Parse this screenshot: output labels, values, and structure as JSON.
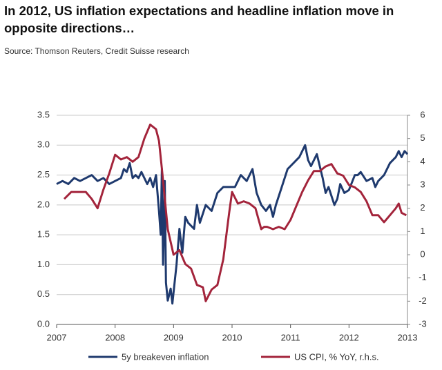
{
  "chart_data": {
    "type": "line",
    "title": "In 2012, US inflation expectations and headline inflation move in opposite directions…",
    "subtitle": "Source: Thomson Reuters, Credit Suisse research",
    "xlim": [
      2007,
      2013
    ],
    "xticks": [
      2007,
      2008,
      2009,
      2010,
      2011,
      2012,
      2013
    ],
    "ylim": [
      0,
      3.5
    ],
    "yticks": [
      {
        "value": 0,
        "label": "0.0"
      },
      0.5,
      {
        "value": 1,
        "label": "1.0"
      },
      1.5,
      {
        "value": 2,
        "label": "2.0"
      },
      2.5,
      {
        "value": 3,
        "label": "3.0"
      },
      3.5
    ],
    "y2lim": [
      -3,
      6
    ],
    "y2ticks": [
      -3,
      -2,
      -1,
      0,
      1,
      2,
      3,
      4,
      5,
      6
    ],
    "grid": true,
    "series": [
      {
        "name": "5y breakeven inflation",
        "color": "#1f3a6e",
        "x": [
          2007.0,
          2007.1,
          2007.2,
          2007.3,
          2007.4,
          2007.5,
          2007.6,
          2007.7,
          2007.8,
          2007.9,
          2008.0,
          2008.1,
          2008.15,
          2008.2,
          2008.25,
          2008.3,
          2008.35,
          2008.4,
          2008.45,
          2008.5,
          2008.55,
          2008.6,
          2008.65,
          2008.7,
          2008.75,
          2008.78,
          2008.8,
          2008.82,
          2008.85,
          2008.87,
          2008.9,
          2008.95,
          2008.98,
          2009.05,
          2009.1,
          2009.15,
          2009.2,
          2009.25,
          2009.35,
          2009.4,
          2009.45,
          2009.55,
          2009.65,
          2009.75,
          2009.85,
          2009.95,
          2010.05,
          2010.15,
          2010.25,
          2010.35,
          2010.42,
          2010.5,
          2010.58,
          2010.65,
          2010.7,
          2010.75,
          2010.85,
          2010.95,
          2011.05,
          2011.15,
          2011.25,
          2011.3,
          2011.35,
          2011.45,
          2011.55,
          2011.6,
          2011.65,
          2011.75,
          2011.8,
          2011.85,
          2011.92,
          2012.0,
          2012.1,
          2012.15,
          2012.2,
          2012.3,
          2012.4,
          2012.45,
          2012.5,
          2012.6,
          2012.7,
          2012.8,
          2012.85,
          2012.9,
          2012.95,
          2013.0
        ],
        "values": [
          2.35,
          2.4,
          2.35,
          2.45,
          2.4,
          2.45,
          2.5,
          2.4,
          2.45,
          2.35,
          2.4,
          2.45,
          2.6,
          2.55,
          2.7,
          2.45,
          2.5,
          2.45,
          2.55,
          2.45,
          2.35,
          2.45,
          2.3,
          2.5,
          1.9,
          1.5,
          2.6,
          1.0,
          2.4,
          0.7,
          0.4,
          0.6,
          0.35,
          1.0,
          1.6,
          1.2,
          1.8,
          1.7,
          1.6,
          2.0,
          1.7,
          2.0,
          1.9,
          2.2,
          2.3,
          2.3,
          2.3,
          2.5,
          2.4,
          2.6,
          2.2,
          2.0,
          1.9,
          2.0,
          1.8,
          2.0,
          2.3,
          2.6,
          2.7,
          2.8,
          3.0,
          2.75,
          2.65,
          2.85,
          2.45,
          2.2,
          2.3,
          2.0,
          2.1,
          2.35,
          2.2,
          2.25,
          2.5,
          2.5,
          2.55,
          2.4,
          2.45,
          2.3,
          2.4,
          2.5,
          2.7,
          2.8,
          2.9,
          2.8,
          2.9,
          2.85
        ]
      },
      {
        "name": "US CPI, % YoY, r.h.s.",
        "color": "#a3243b",
        "axis": "y2",
        "x": [
          2007.13,
          2007.25,
          2007.4,
          2007.5,
          2007.6,
          2007.7,
          2007.8,
          2007.9,
          2008.0,
          2008.1,
          2008.2,
          2008.3,
          2008.4,
          2008.5,
          2008.6,
          2008.7,
          2008.75,
          2008.8,
          2008.9,
          2009.0,
          2009.1,
          2009.2,
          2009.3,
          2009.4,
          2009.5,
          2009.55,
          2009.65,
          2009.75,
          2009.85,
          2009.95,
          2010.0,
          2010.1,
          2010.2,
          2010.3,
          2010.4,
          2010.5,
          2010.55,
          2010.6,
          2010.7,
          2010.8,
          2010.9,
          2011.0,
          2011.1,
          2011.2,
          2011.3,
          2011.4,
          2011.5,
          2011.6,
          2011.7,
          2011.8,
          2011.9,
          2012.0,
          2012.1,
          2012.2,
          2012.3,
          2012.4,
          2012.5,
          2012.6,
          2012.7,
          2012.8,
          2012.85,
          2012.9,
          2012.98
        ],
        "values": [
          2.4,
          2.7,
          2.7,
          2.7,
          2.4,
          2.0,
          2.8,
          3.5,
          4.3,
          4.1,
          4.2,
          4.0,
          4.2,
          5.0,
          5.6,
          5.4,
          4.9,
          3.7,
          1.1,
          0.0,
          0.2,
          -0.4,
          -0.6,
          -1.3,
          -1.4,
          -2.0,
          -1.5,
          -1.3,
          -0.2,
          1.8,
          2.7,
          2.2,
          2.3,
          2.2,
          2.0,
          1.1,
          1.2,
          1.2,
          1.1,
          1.2,
          1.1,
          1.5,
          2.1,
          2.7,
          3.2,
          3.6,
          3.6,
          3.8,
          3.9,
          3.5,
          3.4,
          3.0,
          2.9,
          2.7,
          2.3,
          1.7,
          1.7,
          1.4,
          1.7,
          2.0,
          2.2,
          1.8,
          1.7
        ]
      }
    ]
  }
}
